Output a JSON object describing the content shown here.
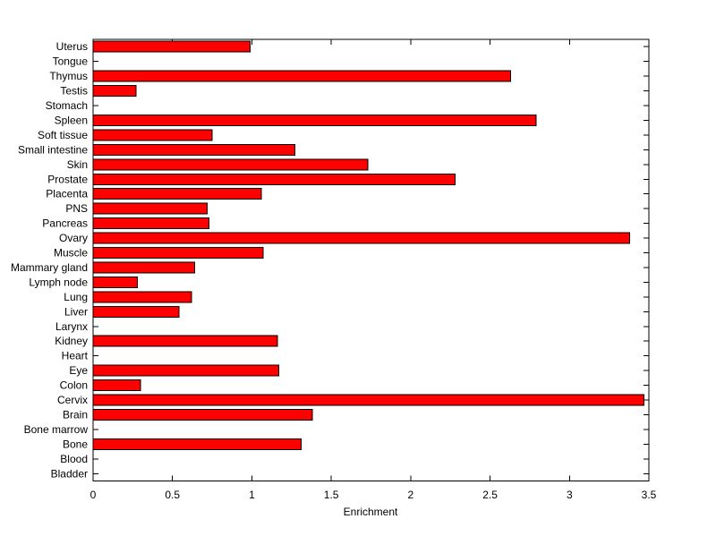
{
  "chart_data": {
    "type": "bar",
    "orientation": "horizontal",
    "title": "",
    "xlabel": "Enrichment",
    "ylabel": "",
    "xlim": [
      0,
      3.5
    ],
    "xtick_values": [
      0,
      0.5,
      1,
      1.5,
      2,
      2.5,
      3,
      3.5
    ],
    "xtick_labels": [
      "0",
      "0.5",
      "1",
      "1.5",
      "2",
      "2.5",
      "3",
      "3.5"
    ],
    "grid": false,
    "legend_position": "none",
    "bar_color": "#ff0000",
    "bar_edge_color": "#000000",
    "axis_color": "#000000",
    "plot_background": "#ffffff",
    "categories": [
      "Uterus",
      "Tongue",
      "Thymus",
      "Testis",
      "Stomach",
      "Spleen",
      "Soft tissue",
      "Small intestine",
      "Skin",
      "Prostate",
      "Placenta",
      "PNS",
      "Pancreas",
      "Ovary",
      "Muscle",
      "Mammary gland",
      "Lymph node",
      "Lung",
      "Liver",
      "Larynx",
      "Kidney",
      "Heart",
      "Eye",
      "Colon",
      "Cervix",
      "Brain",
      "Bone marrow",
      "Bone",
      "Blood",
      "Bladder"
    ],
    "values": [
      0.99,
      0,
      2.63,
      0.27,
      0,
      2.79,
      0.75,
      1.27,
      1.73,
      2.28,
      1.06,
      0.72,
      0.73,
      3.38,
      1.07,
      0.64,
      0.28,
      0.62,
      0.54,
      0,
      1.16,
      0,
      1.17,
      0.3,
      3.47,
      1.38,
      0,
      1.31,
      0,
      0
    ]
  }
}
